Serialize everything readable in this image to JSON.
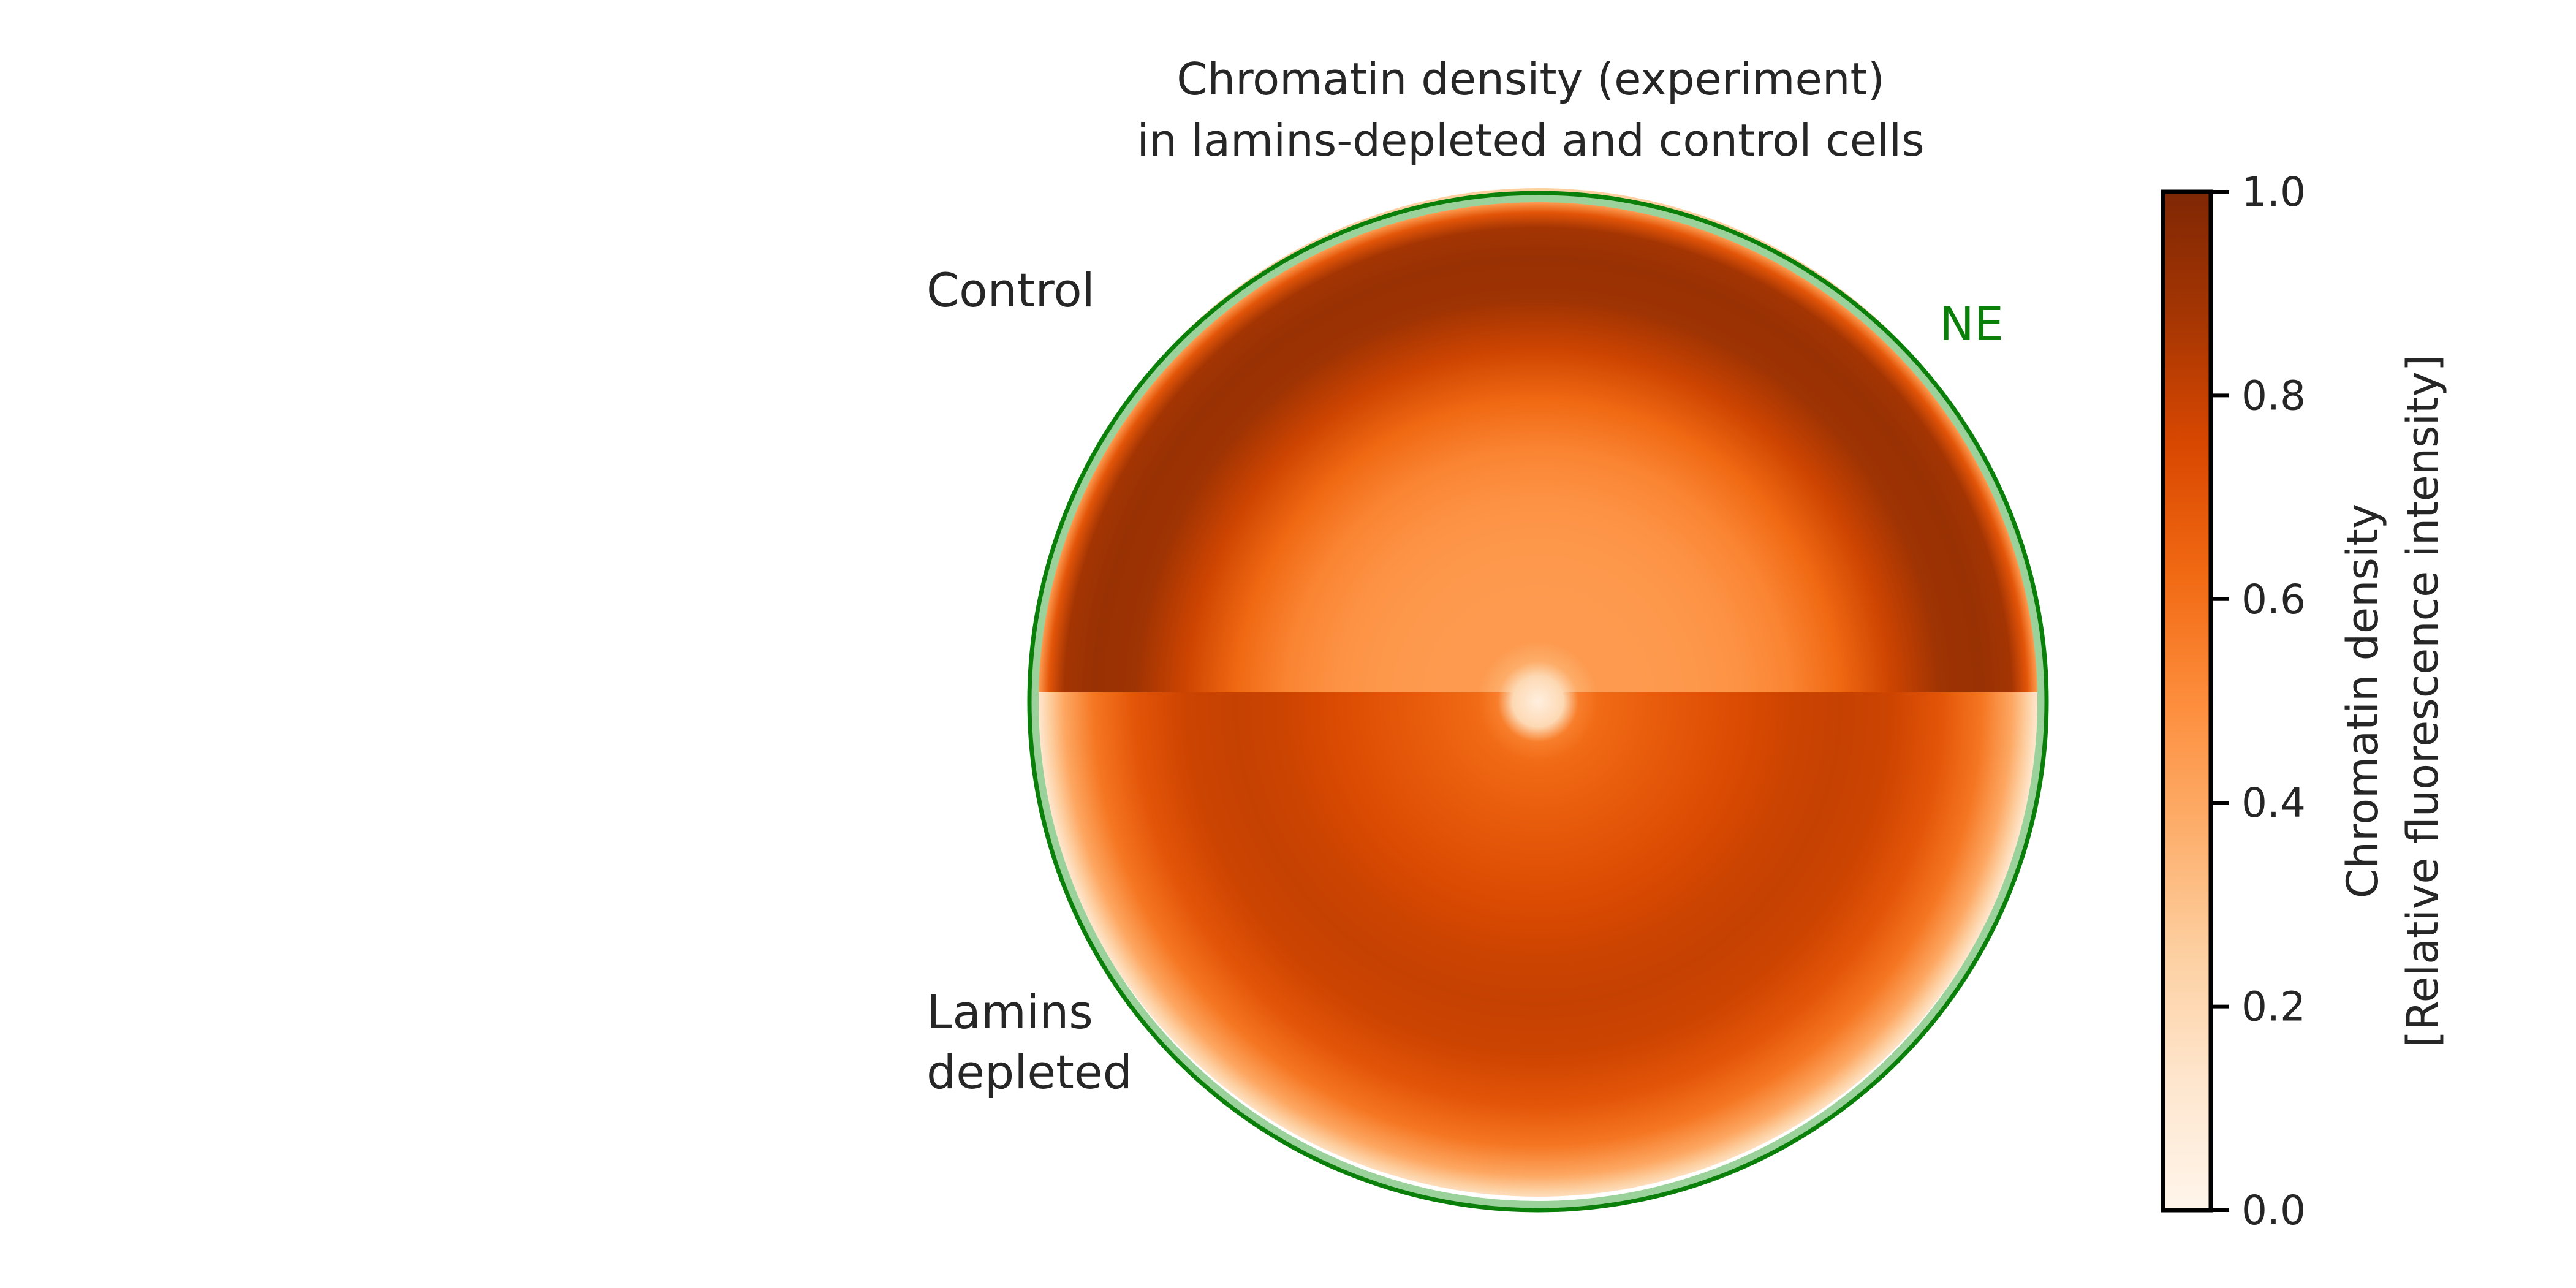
{
  "chart_data": {
    "type": "heatmap",
    "title_lines": [
      "Chromatin density (experiment)",
      "in lamins-depleted  and control cells"
    ],
    "halves": [
      {
        "label_lines": [
          "Control"
        ],
        "position": "top",
        "radial_profile": {
          "r": [
            0,
            0.05,
            0.08,
            0.12,
            0.2,
            0.3,
            0.4,
            0.5,
            0.6,
            0.7,
            0.8,
            0.88,
            0.94,
            0.97,
            0.99,
            1.0
          ],
          "density": [
            0.05,
            0.2,
            0.38,
            0.45,
            0.45,
            0.46,
            0.48,
            0.53,
            0.63,
            0.78,
            0.9,
            0.92,
            0.88,
            0.7,
            0.45,
            0.25
          ]
        }
      },
      {
        "label_lines": [
          "Lamins",
          "depleted"
        ],
        "position": "bottom",
        "radial_profile": {
          "r": [
            0,
            0.05,
            0.08,
            0.12,
            0.2,
            0.3,
            0.4,
            0.5,
            0.6,
            0.7,
            0.8,
            0.88,
            0.94,
            0.97,
            0.99,
            1.0
          ],
          "density": [
            0.05,
            0.2,
            0.55,
            0.62,
            0.66,
            0.7,
            0.74,
            0.78,
            0.8,
            0.78,
            0.7,
            0.58,
            0.4,
            0.25,
            0.12,
            0.06
          ]
        }
      }
    ],
    "envelope": {
      "label": "NE",
      "color": "#0a7f0a",
      "inner_color": "#9bd29b"
    },
    "colorbar": {
      "label_lines": [
        "Chromatin density",
        "[Relative fluorescence intensity]"
      ],
      "range": [
        0,
        1
      ],
      "ticks": [
        "0.0",
        "0.2",
        "0.4",
        "0.6",
        "0.8",
        "1.0"
      ],
      "colormap": "Oranges",
      "stops": [
        "#fff5eb",
        "#fee6ce",
        "#fdd0a2",
        "#fdae6b",
        "#fd8d3c",
        "#f16913",
        "#d94801",
        "#a63603",
        "#7f2704"
      ]
    }
  }
}
